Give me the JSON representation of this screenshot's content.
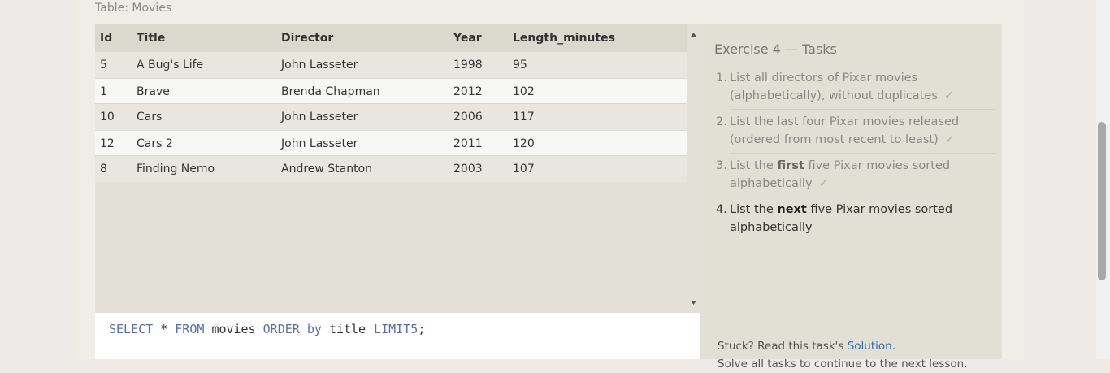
{
  "table_caption": "Table: Movies",
  "table": {
    "columns": [
      "Id",
      "Title",
      "Director",
      "Year",
      "Length_minutes"
    ],
    "rows": [
      [
        5,
        "A Bug's Life",
        "John Lasseter",
        1998,
        95
      ],
      [
        1,
        "Brave",
        "Brenda Chapman",
        2012,
        102
      ],
      [
        10,
        "Cars",
        "John Lasseter",
        2006,
        117
      ],
      [
        12,
        "Cars 2",
        "John Lasseter",
        2011,
        120
      ],
      [
        8,
        "Finding Nemo",
        "Andrew Stanton",
        2003,
        107
      ]
    ]
  },
  "query": {
    "tokens": [
      {
        "text": "SELECT",
        "kind": "keyword"
      },
      {
        "text": "*",
        "kind": "plain"
      },
      {
        "text": "FROM",
        "kind": "keyword"
      },
      {
        "text": "movies",
        "kind": "plain"
      },
      {
        "text": "ORDER by",
        "kind": "keyword"
      },
      {
        "text": "title",
        "kind": "plain",
        "cursor": true
      },
      {
        "text": "LIMIT",
        "kind": "keyword"
      },
      {
        "text": "5",
        "kind": "keyword",
        "tight": true
      },
      {
        "text": ";",
        "kind": "plain",
        "tight": true
      }
    ]
  },
  "tasks": {
    "title": "Exercise 4 — Tasks",
    "items": [
      {
        "number": "1.",
        "done": true,
        "check": "✓",
        "parts": [
          {
            "text": "List all directors of Pixar movies (alphabetically), without duplicates",
            "bold": false
          }
        ]
      },
      {
        "number": "2.",
        "done": true,
        "check": "✓",
        "parts": [
          {
            "text": "List the last four Pixar movies released (ordered from most recent to least)",
            "bold": false
          }
        ]
      },
      {
        "number": "3.",
        "done": true,
        "check": "✓",
        "parts": [
          {
            "text": "List the ",
            "bold": false
          },
          {
            "text": "first",
            "bold": true
          },
          {
            "text": " five Pixar movies sorted alphabetically",
            "bold": false
          }
        ]
      },
      {
        "number": "4.",
        "done": false,
        "parts": [
          {
            "text": "List the ",
            "bold": false
          },
          {
            "text": "next",
            "bold": true
          },
          {
            "text": " five Pixar movies sorted alphabetically",
            "bold": false
          }
        ]
      }
    ]
  },
  "footer": {
    "stuck": "Stuck? Read this task's",
    "link": "Solution",
    "end": ".",
    "next": "Solve all tasks to continue to the next lesson."
  }
}
